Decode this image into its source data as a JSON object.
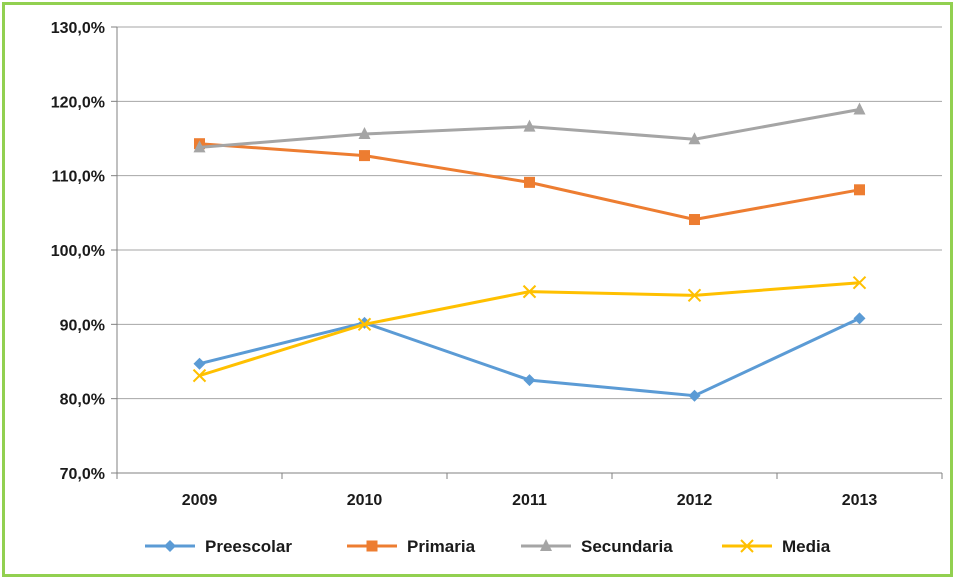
{
  "chart_data": {
    "type": "line",
    "categories": [
      "2009",
      "2010",
      "2011",
      "2012",
      "2013"
    ],
    "ylim": [
      70,
      130
    ],
    "yticks": [
      70,
      80,
      90,
      100,
      110,
      120,
      130
    ],
    "ytick_labels": [
      "70,0%",
      "80,0%",
      "90,0%",
      "100,0%",
      "110,0%",
      "120,0%",
      "130,0%"
    ],
    "grid": true,
    "legend_position": "bottom",
    "series": [
      {
        "name": "Preescolar",
        "values": [
          84.7,
          90.2,
          82.5,
          80.4,
          90.8
        ],
        "color": "#5b9bd5",
        "marker": "diamond"
      },
      {
        "name": "Primaria",
        "values": [
          114.3,
          112.7,
          109.1,
          104.1,
          108.1
        ],
        "color": "#ed7d31",
        "marker": "square"
      },
      {
        "name": "Secundaria",
        "values": [
          113.8,
          115.6,
          116.6,
          114.9,
          118.9
        ],
        "color": "#a5a5a5",
        "marker": "triangle"
      },
      {
        "name": "Media",
        "values": [
          83.1,
          90.0,
          94.4,
          93.9,
          95.6
        ],
        "color": "#ffc000",
        "marker": "x"
      }
    ]
  }
}
